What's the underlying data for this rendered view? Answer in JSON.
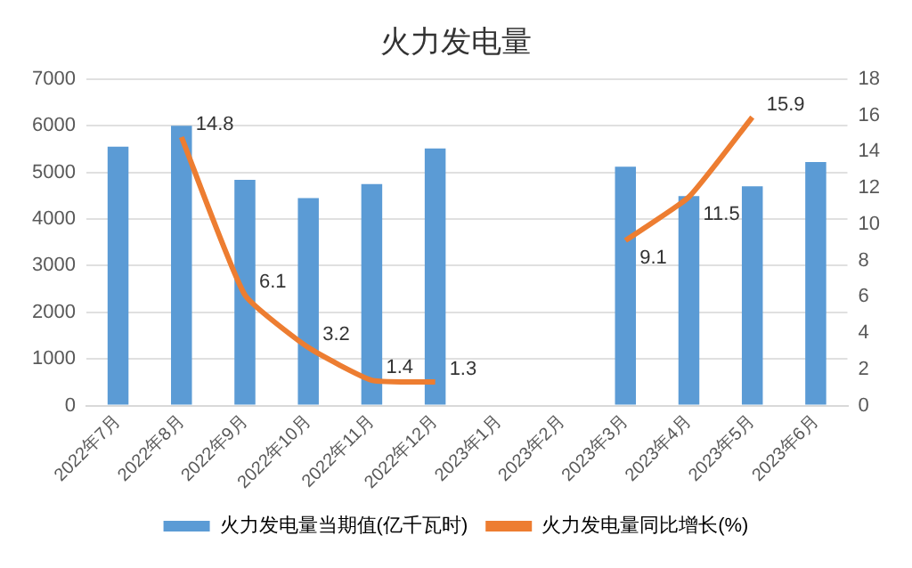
{
  "chart_data": {
    "type": "bar",
    "title": "火力发电量",
    "categories": [
      "2022年7月",
      "2022年8月",
      "2022年9月",
      "2022年10月",
      "2022年11月",
      "2022年12月",
      "2023年1月",
      "2023年2月",
      "2023年3月",
      "2023年4月",
      "2023年5月",
      "2023年6月"
    ],
    "series": [
      {
        "name": "火力发电量当期值(亿千瓦时)",
        "color": "#5b9bd5",
        "values": [
          5550,
          6000,
          4840,
          4450,
          4750,
          5510,
          null,
          null,
          5120,
          4490,
          4700,
          5220
        ]
      },
      {
        "name": "火力发电量同比增长(%)",
        "type": "line",
        "axis": "y2",
        "color": "#ed7d31",
        "values": [
          null,
          14.8,
          6.1,
          3.2,
          1.4,
          1.3,
          null,
          null,
          9.1,
          11.5,
          15.9,
          null
        ],
        "value_labels": [
          null,
          "14.8",
          "6.1",
          "3.2",
          "1.4",
          "1.3",
          null,
          null,
          "9.1",
          "11.5",
          "15.9",
          null
        ]
      }
    ],
    "ylim": [
      0,
      7000
    ],
    "yticks": [
      0,
      1000,
      2000,
      3000,
      4000,
      5000,
      6000,
      7000
    ],
    "y2lim": [
      0,
      18
    ],
    "y2ticks": [
      0,
      2,
      4,
      6,
      8,
      10,
      12,
      14,
      16,
      18
    ],
    "grid": "y",
    "legend": "bottom",
    "marker": "none"
  }
}
